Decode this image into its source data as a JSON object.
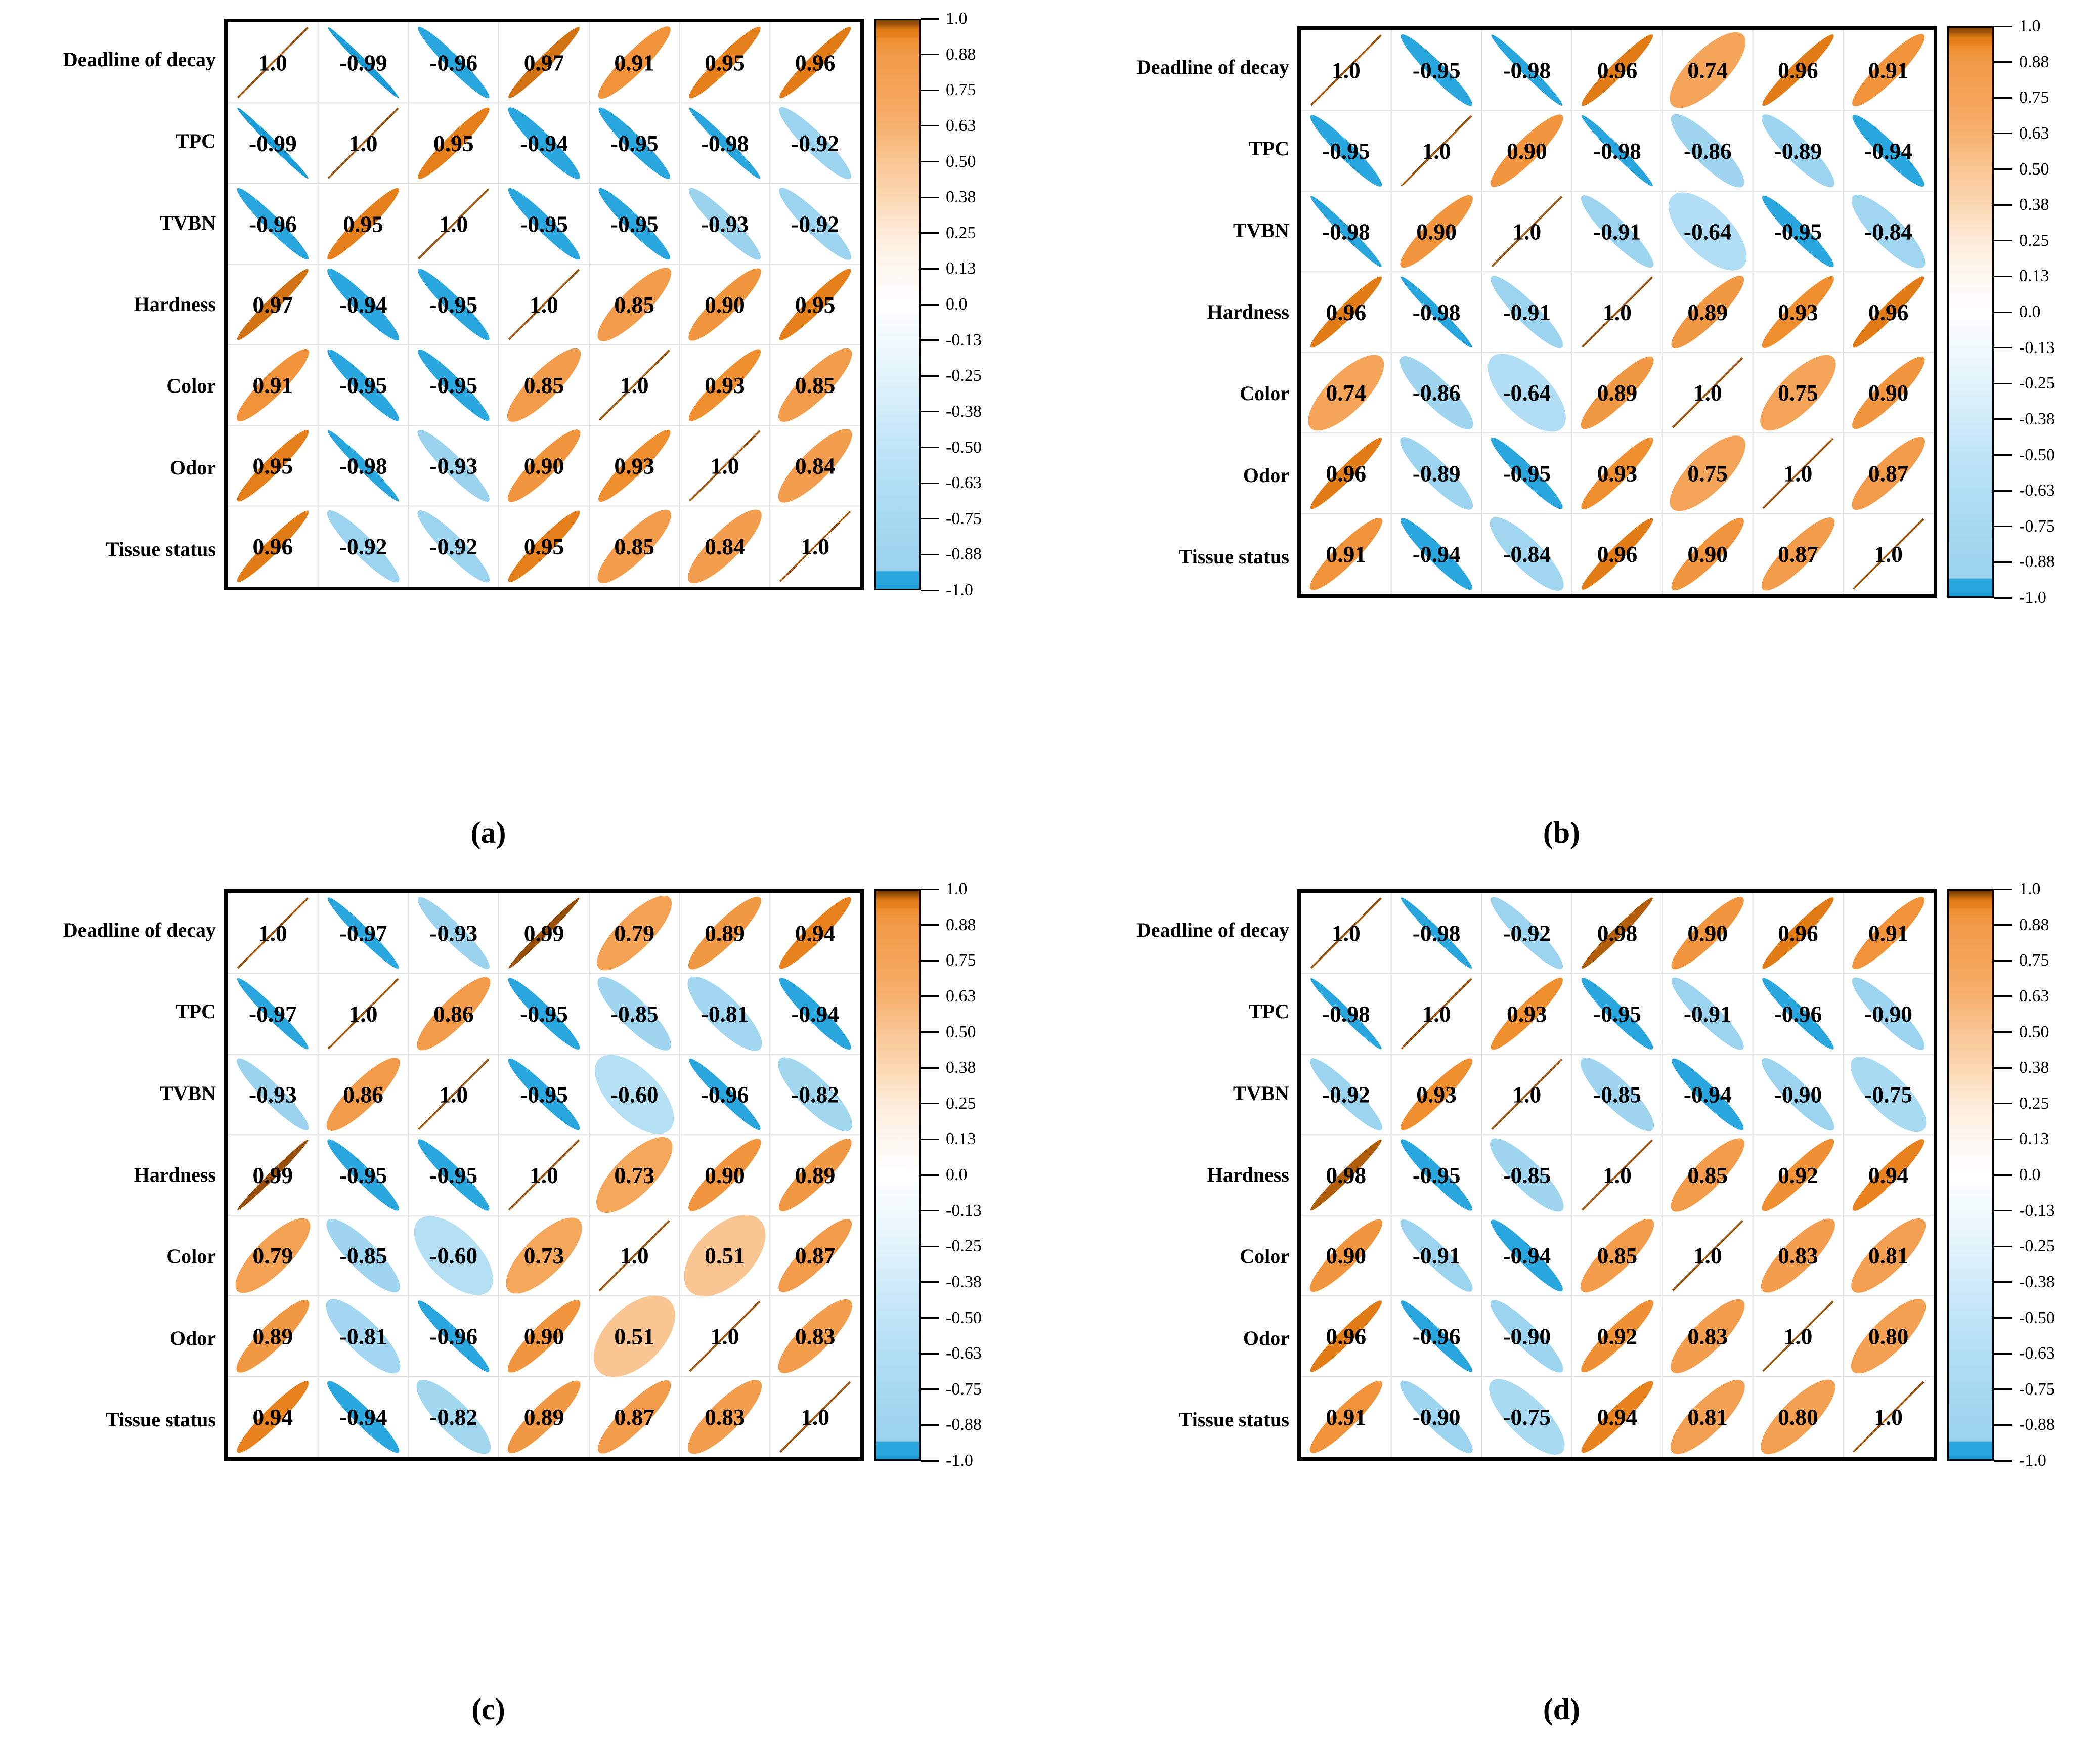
{
  "figure": {
    "variables": [
      "Deadline of decay",
      "TPC",
      "TVBN",
      "Hardness",
      "Color",
      "Odor",
      "Tissue status"
    ],
    "colorbar_ticks": [
      "1.0",
      "0.88",
      "0.75",
      "0.63",
      "0.50",
      "0.38",
      "0.25",
      "0.13",
      "0.0",
      "-0.13",
      "-0.25",
      "-0.38",
      "-0.50",
      "-0.63",
      "-0.75",
      "-0.88",
      "-1.0"
    ],
    "captions": {
      "a": "(a)",
      "b": "(b)",
      "c": "(c)",
      "d": "(d)"
    },
    "colors": {
      "positive_strong": "#e8821f",
      "positive_dark_high": "#8a4a0b",
      "positive_light": "#f4a458",
      "negative_strong": "#2aa7de",
      "negative_light": "#a8daf2",
      "diagonal_line": "#9c5713",
      "gridline": "#e2e2e2",
      "border": "#000000"
    },
    "colormap_stops": [
      [
        -1.0,
        "#1b9cd6"
      ],
      [
        -0.99,
        "#1b9cd6"
      ],
      [
        -0.985,
        "#28a5dc"
      ],
      [
        -0.94,
        "#2aa7de"
      ],
      [
        -0.935,
        "#9bd3ef"
      ],
      [
        -0.88,
        "#9dd4ef"
      ],
      [
        -0.75,
        "#a8daf2"
      ],
      [
        -0.63,
        "#b2def4"
      ],
      [
        -0.5,
        "#c0e5f6"
      ],
      [
        -0.38,
        "#d0ebf9"
      ],
      [
        -0.25,
        "#e2f3fb"
      ],
      [
        -0.13,
        "#f0f9fd"
      ],
      [
        0.0,
        "#ffffff"
      ],
      [
        0.13,
        "#fef7f0"
      ],
      [
        0.25,
        "#fdebd9"
      ],
      [
        0.38,
        "#fbd7b0"
      ],
      [
        0.5,
        "#f9c795"
      ],
      [
        0.63,
        "#f6b06c"
      ],
      [
        0.75,
        "#f4a458"
      ],
      [
        0.88,
        "#f29a49"
      ],
      [
        0.935,
        "#ef8e2e"
      ],
      [
        0.94,
        "#e8821f"
      ],
      [
        0.965,
        "#e07b15"
      ],
      [
        0.975,
        "#c16a10"
      ],
      [
        0.985,
        "#a1530a"
      ],
      [
        0.995,
        "#8a4a0b"
      ],
      [
        1.0,
        "#7f3f05"
      ]
    ]
  },
  "chart_data": [
    {
      "type": "heatmap",
      "panel": "a",
      "title": "(a)",
      "categories": [
        "Deadline of decay",
        "TPC",
        "TVBN",
        "Hardness",
        "Color",
        "Odor",
        "Tissue status"
      ],
      "matrix": [
        [
          "1.0",
          "-0.99",
          "-0.96",
          "0.97",
          "0.91",
          "0.95",
          "0.96"
        ],
        [
          "-0.99",
          "1.0",
          "0.95",
          "-0.94",
          "-0.95",
          "-0.98",
          "-0.92"
        ],
        [
          "-0.96",
          "0.95",
          "1.0",
          "-0.95",
          "-0.95",
          "-0.93",
          "-0.92"
        ],
        [
          "0.97",
          "-0.94",
          "-0.95",
          "1.0",
          "0.85",
          "0.90",
          "0.95"
        ],
        [
          "0.91",
          "-0.95",
          "-0.95",
          "0.85",
          "1.0",
          "0.93",
          "0.85"
        ],
        [
          "0.95",
          "-0.98",
          "-0.93",
          "0.90",
          "0.93",
          "1.0",
          "0.84"
        ],
        [
          "0.96",
          "-0.92",
          "-0.92",
          "0.95",
          "0.85",
          "0.84",
          "1.0"
        ]
      ]
    },
    {
      "type": "heatmap",
      "panel": "b",
      "title": "(b)",
      "categories": [
        "Deadline of decay",
        "TPC",
        "TVBN",
        "Hardness",
        "Color",
        "Odor",
        "Tissue status"
      ],
      "matrix": [
        [
          "1.0",
          "-0.95",
          "-0.98",
          "0.96",
          "0.74",
          "0.96",
          "0.91"
        ],
        [
          "-0.95",
          "1.0",
          "0.90",
          "-0.98",
          "-0.86",
          "-0.89",
          "-0.94"
        ],
        [
          "-0.98",
          "0.90",
          "1.0",
          "-0.91",
          "-0.64",
          "-0.95",
          "-0.84"
        ],
        [
          "0.96",
          "-0.98",
          "-0.91",
          "1.0",
          "0.89",
          "0.93",
          "0.96"
        ],
        [
          "0.74",
          "-0.86",
          "-0.64",
          "0.89",
          "1.0",
          "0.75",
          "0.90"
        ],
        [
          "0.96",
          "-0.89",
          "-0.95",
          "0.93",
          "0.75",
          "1.0",
          "0.87"
        ],
        [
          "0.91",
          "-0.94",
          "-0.84",
          "0.96",
          "0.90",
          "0.87",
          "1.0"
        ]
      ]
    },
    {
      "type": "heatmap",
      "panel": "c",
      "title": "(c)",
      "categories": [
        "Deadline of decay",
        "TPC",
        "TVBN",
        "Hardness",
        "Color",
        "Odor",
        "Tissue status"
      ],
      "matrix": [
        [
          "1.0",
          "-0.97",
          "-0.93",
          "0.99",
          "0.79",
          "0.89",
          "0.94"
        ],
        [
          "-0.97",
          "1.0",
          "0.86",
          "-0.95",
          "-0.85",
          "-0.81",
          "-0.94"
        ],
        [
          "-0.93",
          "0.86",
          "1.0",
          "-0.95",
          "-0.60",
          "-0.96",
          "-0.82"
        ],
        [
          "0.99",
          "-0.95",
          "-0.95",
          "1.0",
          "0.73",
          "0.90",
          "0.89"
        ],
        [
          "0.79",
          "-0.85",
          "-0.60",
          "0.73",
          "1.0",
          "0.51",
          "0.87"
        ],
        [
          "0.89",
          "-0.81",
          "-0.96",
          "0.90",
          "0.51",
          "1.0",
          "0.83"
        ],
        [
          "0.94",
          "-0.94",
          "-0.82",
          "0.89",
          "0.87",
          "0.83",
          "1.0"
        ]
      ]
    },
    {
      "type": "heatmap",
      "panel": "d",
      "title": "(d)",
      "categories": [
        "Deadline of decay",
        "TPC",
        "TVBN",
        "Hardness",
        "Color",
        "Odor",
        "Tissue status"
      ],
      "matrix": [
        [
          "1.0",
          "-0.98",
          "-0.92",
          "0.98",
          "0.90",
          "0.96",
          "0.91"
        ],
        [
          "-0.98",
          "1.0",
          "0.93",
          "-0.95",
          "-0.91",
          "-0.96",
          "-0.90"
        ],
        [
          "-0.92",
          "0.93",
          "1.0",
          "-0.85",
          "-0.94",
          "-0.90",
          "-0.75"
        ],
        [
          "0.98",
          "-0.95",
          "-0.85",
          "1.0",
          "0.85",
          "0.92",
          "0.94"
        ],
        [
          "0.90",
          "-0.91",
          "-0.94",
          "0.85",
          "1.0",
          "0.83",
          "0.81"
        ],
        [
          "0.96",
          "-0.96",
          "-0.90",
          "0.92",
          "0.83",
          "1.0",
          "0.80"
        ],
        [
          "0.91",
          "-0.90",
          "-0.75",
          "0.94",
          "0.81",
          "0.80",
          "1.0"
        ]
      ]
    }
  ]
}
